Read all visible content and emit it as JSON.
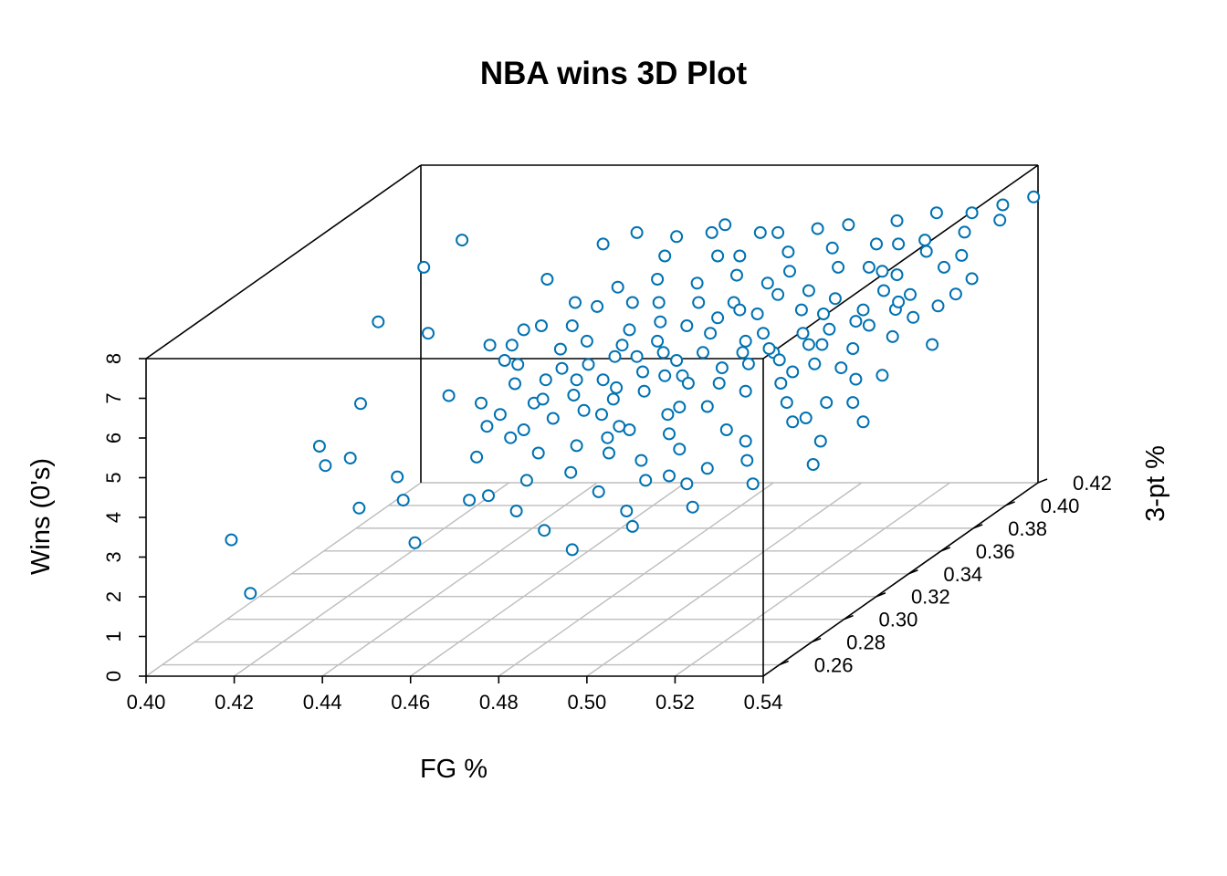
{
  "chart_data": {
    "type": "scatter",
    "title": "NBA wins 3D Plot",
    "xlabel": "FG %",
    "ylabel": "3-pt %",
    "zlabel": "Wins (0's)",
    "xlim": [
      0.4,
      0.54
    ],
    "ylim": [
      0.25,
      0.42
    ],
    "zlim": [
      0,
      8
    ],
    "x_ticks": [
      "0.40",
      "0.42",
      "0.44",
      "0.46",
      "0.48",
      "0.50",
      "0.52",
      "0.54"
    ],
    "y_ticks": [
      "0.26",
      "0.28",
      "0.30",
      "0.32",
      "0.34",
      "0.36",
      "0.38",
      "0.40",
      "0.42"
    ],
    "z_ticks": [
      "0",
      "1",
      "2",
      "3",
      "4",
      "5",
      "6",
      "7",
      "8"
    ],
    "grid": "floor",
    "color": "#0072b2",
    "points": [
      [
        0.401,
        0.3,
        2.0
      ],
      [
        0.42,
        0.26,
        1.8
      ],
      [
        0.41,
        0.33,
        3.5
      ],
      [
        0.415,
        0.32,
        3.3
      ],
      [
        0.417,
        0.33,
        3.2
      ],
      [
        0.412,
        0.35,
        4.0
      ],
      [
        0.405,
        0.38,
        5.2
      ],
      [
        0.413,
        0.41,
        6.4
      ],
      [
        0.408,
        0.4,
        6.0
      ],
      [
        0.42,
        0.37,
        5.2
      ],
      [
        0.43,
        0.3,
        2.8
      ],
      [
        0.435,
        0.31,
        3.3
      ],
      [
        0.44,
        0.3,
        3.0
      ],
      [
        0.45,
        0.28,
        2.5
      ],
      [
        0.455,
        0.3,
        3.0
      ],
      [
        0.432,
        0.35,
        4.2
      ],
      [
        0.438,
        0.38,
        5.0
      ],
      [
        0.442,
        0.38,
        5.1
      ],
      [
        0.45,
        0.37,
        4.8
      ],
      [
        0.445,
        0.41,
        6.3
      ],
      [
        0.448,
        0.33,
        4.0
      ],
      [
        0.455,
        0.34,
        4.3
      ],
      [
        0.46,
        0.36,
        4.7
      ],
      [
        0.462,
        0.38,
        5.0
      ],
      [
        0.458,
        0.42,
        6.2
      ],
      [
        0.452,
        0.4,
        5.5
      ],
      [
        0.468,
        0.3,
        3.5
      ],
      [
        0.472,
        0.32,
        3.8
      ],
      [
        0.47,
        0.35,
        4.4
      ],
      [
        0.478,
        0.33,
        4.0
      ],
      [
        0.48,
        0.36,
        4.8
      ],
      [
        0.475,
        0.38,
        5.1
      ],
      [
        0.47,
        0.4,
        5.6
      ],
      [
        0.466,
        0.42,
        6.3
      ],
      [
        0.476,
        0.41,
        6.0
      ],
      [
        0.482,
        0.39,
        5.4
      ],
      [
        0.488,
        0.34,
        4.2
      ],
      [
        0.492,
        0.37,
        5.0
      ],
      [
        0.486,
        0.4,
        5.6
      ],
      [
        0.49,
        0.42,
        6.4
      ],
      [
        0.495,
        0.3,
        3.5
      ],
      [
        0.498,
        0.33,
        4.5
      ],
      [
        0.502,
        0.36,
        5.0
      ],
      [
        0.505,
        0.39,
        5.5
      ],
      [
        0.497,
        0.41,
        6.2
      ],
      [
        0.508,
        0.42,
        6.6
      ],
      [
        0.51,
        0.35,
        4.8
      ],
      [
        0.515,
        0.38,
        5.5
      ],
      [
        0.512,
        0.4,
        5.9
      ],
      [
        0.518,
        0.41,
        6.4
      ],
      [
        0.52,
        0.36,
        5.1
      ],
      [
        0.522,
        0.39,
        5.6
      ],
      [
        0.525,
        0.42,
        6.8
      ],
      [
        0.53,
        0.4,
        6.3
      ],
      [
        0.535,
        0.41,
        6.9
      ],
      [
        0.532,
        0.38,
        5.6
      ],
      [
        0.538,
        0.36,
        5.2
      ],
      [
        0.526,
        0.37,
        5.8
      ],
      [
        0.516,
        0.33,
        4.6
      ],
      [
        0.506,
        0.32,
        4.2
      ],
      [
        0.494,
        0.35,
        4.9
      ],
      [
        0.484,
        0.37,
        5.2
      ],
      [
        0.474,
        0.39,
        5.4
      ],
      [
        0.464,
        0.37,
        4.9
      ],
      [
        0.454,
        0.36,
        4.6
      ],
      [
        0.463,
        0.33,
        4.2
      ],
      [
        0.473,
        0.34,
        4.4
      ],
      [
        0.483,
        0.31,
        3.9
      ],
      [
        0.493,
        0.32,
        4.1
      ],
      [
        0.503,
        0.34,
        4.6
      ],
      [
        0.513,
        0.36,
        5.2
      ],
      [
        0.523,
        0.38,
        5.7
      ],
      [
        0.528,
        0.34,
        4.9
      ],
      [
        0.518,
        0.3,
        4.0
      ],
      [
        0.508,
        0.29,
        3.7
      ],
      [
        0.498,
        0.28,
        3.3
      ],
      [
        0.488,
        0.29,
        3.5
      ],
      [
        0.478,
        0.3,
        3.7
      ],
      [
        0.467,
        0.31,
        3.9
      ],
      [
        0.457,
        0.32,
        4.0
      ],
      [
        0.447,
        0.35,
        4.5
      ],
      [
        0.441,
        0.36,
        4.8
      ],
      [
        0.451,
        0.39,
        5.3
      ],
      [
        0.461,
        0.4,
        5.7
      ],
      [
        0.471,
        0.41,
        6.0
      ],
      [
        0.481,
        0.42,
        6.3
      ],
      [
        0.491,
        0.4,
        5.9
      ],
      [
        0.501,
        0.38,
        5.5
      ],
      [
        0.511,
        0.37,
        5.3
      ],
      [
        0.521,
        0.35,
        4.9
      ],
      [
        0.531,
        0.33,
        4.6
      ],
      [
        0.536,
        0.39,
        6.0
      ],
      [
        0.527,
        0.41,
        6.6
      ],
      [
        0.517,
        0.42,
        6.8
      ],
      [
        0.507,
        0.41,
        6.3
      ],
      [
        0.487,
        0.38,
        5.5
      ],
      [
        0.477,
        0.36,
        5.0
      ],
      [
        0.467,
        0.35,
        4.6
      ],
      [
        0.457,
        0.34,
        4.4
      ],
      [
        0.465,
        0.39,
        5.4
      ],
      [
        0.485,
        0.35,
        4.7
      ],
      [
        0.495,
        0.36,
        5.0
      ],
      [
        0.505,
        0.37,
        5.2
      ],
      [
        0.515,
        0.35,
        5.0
      ],
      [
        0.525,
        0.33,
        4.6
      ],
      [
        0.489,
        0.33,
        4.3
      ],
      [
        0.499,
        0.31,
        4.0
      ],
      [
        0.509,
        0.3,
        3.8
      ],
      [
        0.479,
        0.32,
        4.0
      ],
      [
        0.469,
        0.38,
        5.2
      ],
      [
        0.459,
        0.39,
        5.4
      ],
      [
        0.449,
        0.38,
        5.1
      ],
      [
        0.439,
        0.37,
        4.9
      ],
      [
        0.443,
        0.34,
        4.3
      ],
      [
        0.453,
        0.31,
        3.8
      ],
      [
        0.463,
        0.29,
        3.4
      ],
      [
        0.473,
        0.28,
        3.3
      ],
      [
        0.483,
        0.27,
        3.1
      ],
      [
        0.493,
        0.26,
        2.9
      ],
      [
        0.503,
        0.27,
        3.2
      ],
      [
        0.513,
        0.28,
        3.4
      ],
      [
        0.523,
        0.29,
        3.7
      ],
      [
        0.533,
        0.3,
        3.9
      ],
      [
        0.537,
        0.32,
        4.4
      ],
      [
        0.529,
        0.36,
        5.4
      ],
      [
        0.519,
        0.39,
        6.1
      ],
      [
        0.509,
        0.4,
        6.0
      ],
      [
        0.499,
        0.39,
        5.7
      ],
      [
        0.479,
        0.4,
        5.8
      ],
      [
        0.469,
        0.42,
        6.5
      ],
      [
        0.459,
        0.41,
        6.0
      ],
      [
        0.449,
        0.42,
        6.3
      ],
      [
        0.472,
        0.37,
        5.0
      ],
      [
        0.482,
        0.38,
        5.3
      ],
      [
        0.492,
        0.39,
        5.6
      ],
      [
        0.502,
        0.4,
        6.0
      ],
      [
        0.512,
        0.41,
        6.3
      ],
      [
        0.522,
        0.4,
        6.4
      ],
      [
        0.532,
        0.42,
        7.0
      ],
      [
        0.539,
        0.42,
        7.2
      ],
      [
        0.534,
        0.34,
        5.0
      ],
      [
        0.524,
        0.32,
        4.5
      ],
      [
        0.514,
        0.31,
        4.2
      ],
      [
        0.504,
        0.29,
        3.9
      ],
      [
        0.494,
        0.3,
        4.0
      ],
      [
        0.484,
        0.32,
        4.2
      ],
      [
        0.474,
        0.33,
        4.3
      ],
      [
        0.464,
        0.34,
        4.5
      ],
      [
        0.454,
        0.35,
        4.6
      ],
      [
        0.444,
        0.36,
        4.7
      ],
      [
        0.434,
        0.37,
        4.9
      ],
      [
        0.476,
        0.35,
        4.8
      ],
      [
        0.486,
        0.36,
        5.0
      ],
      [
        0.496,
        0.37,
        5.2
      ],
      [
        0.506,
        0.38,
        5.4
      ],
      [
        0.516,
        0.39,
        5.7
      ],
      [
        0.526,
        0.4,
        6.0
      ],
      [
        0.536,
        0.38,
        5.9
      ],
      [
        0.53,
        0.37,
        5.6
      ],
      [
        0.52,
        0.37,
        5.4
      ],
      [
        0.51,
        0.36,
        5.2
      ],
      [
        0.5,
        0.35,
        5.0
      ],
      [
        0.49,
        0.34,
        4.8
      ],
      [
        0.48,
        0.34,
        4.6
      ],
      [
        0.47,
        0.33,
        4.4
      ],
      [
        0.46,
        0.32,
        4.2
      ],
      [
        0.466,
        0.36,
        4.9
      ],
      [
        0.456,
        0.37,
        5.0
      ],
      [
        0.446,
        0.39,
        5.4
      ],
      [
        0.436,
        0.4,
        5.7
      ],
      [
        0.487,
        0.41,
        6.1
      ],
      [
        0.497,
        0.42,
        6.5
      ],
      [
        0.477,
        0.42,
        6.3
      ],
      [
        0.491,
        0.38,
        5.4
      ],
      [
        0.501,
        0.36,
        5.1
      ],
      [
        0.511,
        0.34,
        4.8
      ],
      [
        0.521,
        0.32,
        4.4
      ],
      [
        0.531,
        0.31,
        4.2
      ],
      [
        0.517,
        0.37,
        5.5
      ],
      [
        0.507,
        0.35,
        5.1
      ],
      [
        0.497,
        0.34,
        4.8
      ],
      [
        0.471,
        0.36,
        4.9
      ],
      [
        0.481,
        0.35,
        4.7
      ],
      [
        0.461,
        0.35,
        4.6
      ],
      [
        0.451,
        0.33,
        4.3
      ]
    ]
  }
}
